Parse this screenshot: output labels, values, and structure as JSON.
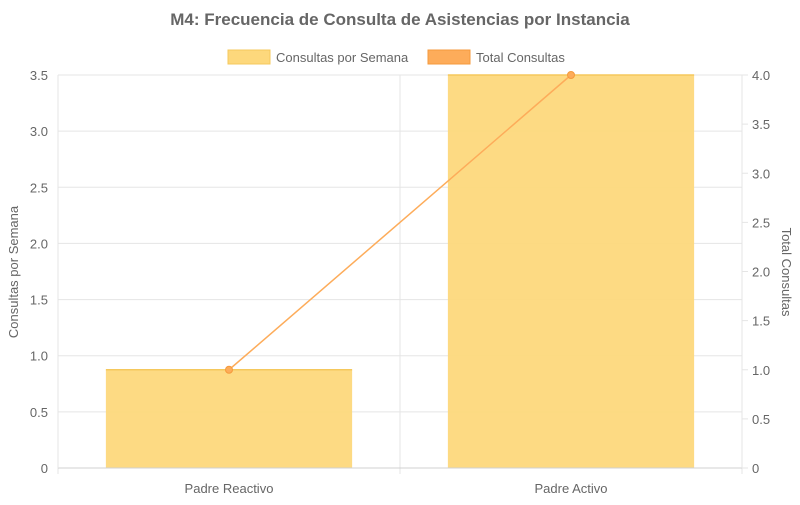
{
  "chart_data": {
    "type": "bar",
    "title": "M4: Frecuencia de Consulta de Asistencias por Instancia",
    "categories": [
      "Padre Reactivo",
      "Padre Activo"
    ],
    "series": [
      {
        "name": "Consultas por Semana",
        "type": "bar",
        "axis": "left",
        "values": [
          0.875,
          3.5
        ],
        "color": "#fdd87c"
      },
      {
        "name": "Total Consultas",
        "type": "line",
        "axis": "right",
        "values": [
          1,
          4
        ],
        "color": "#fdac5a"
      }
    ],
    "y_left": {
      "label": "Consultas por Semana",
      "range": [
        0,
        3.5
      ],
      "ticks": [
        "0",
        "0.5",
        "1.0",
        "1.5",
        "2.0",
        "2.5",
        "3.0",
        "3.5"
      ]
    },
    "y_right": {
      "label": "Total Consultas",
      "range": [
        0,
        4
      ],
      "ticks": [
        "0",
        "0.5",
        "1.0",
        "1.5",
        "2.0",
        "2.5",
        "3.0",
        "3.5",
        "4.0"
      ]
    },
    "grid": true,
    "legend_position": "top-center"
  }
}
